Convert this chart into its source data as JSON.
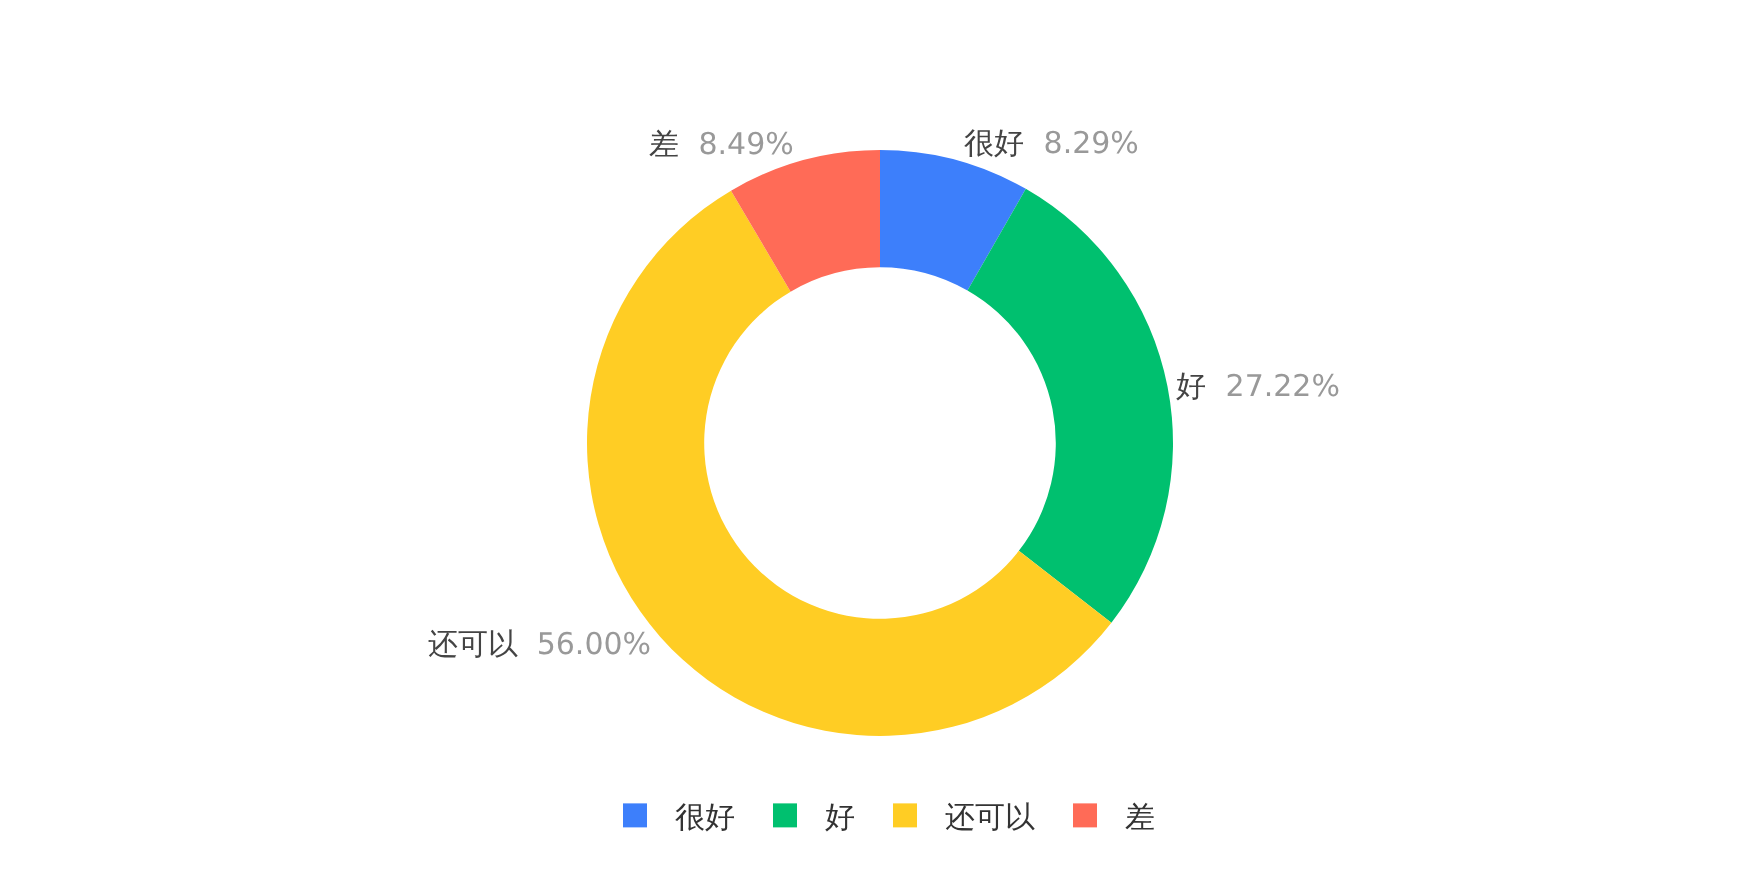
{
  "chart_data": {
    "type": "donut",
    "categories": [
      "很好",
      "好",
      "还可以",
      "差"
    ],
    "values": [
      8.29,
      27.22,
      56.0,
      8.49
    ],
    "value_labels": [
      "8.29%",
      "27.22%",
      "56.00%",
      "8.49%"
    ],
    "colors": [
      "#3d7ffb",
      "#00c06f",
      "#ffcd24",
      "#ff6b57"
    ],
    "legend": "bottom"
  }
}
